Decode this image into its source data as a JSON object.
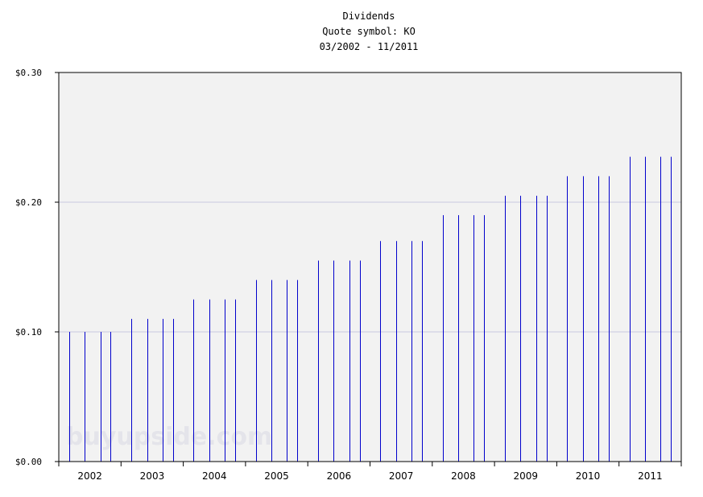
{
  "chart_data": {
    "type": "bar",
    "title_lines": [
      "Dividends",
      "Quote symbol: KO",
      "03/2002 - 11/2011"
    ],
    "watermark": "buyupside.com",
    "ylim": [
      0,
      0.3
    ],
    "y_ticks": [
      {
        "value": 0.0,
        "label": "$0.00"
      },
      {
        "value": 0.1,
        "label": "$0.10"
      },
      {
        "value": 0.2,
        "label": "$0.20"
      },
      {
        "value": 0.3,
        "label": "$0.30"
      }
    ],
    "x_ticks": [
      "2002",
      "2003",
      "2004",
      "2005",
      "2006",
      "2007",
      "2008",
      "2009",
      "2010",
      "2011"
    ],
    "x_range": [
      2002.0,
      2012.0
    ],
    "grid": "horizontal",
    "plot_background": "#f2f2f2",
    "bar_color": "#0000cc",
    "grid_color": "#c8c8e0",
    "series": [
      {
        "points": [
          {
            "date": "2002-03",
            "value": 0.1
          },
          {
            "date": "2002-06",
            "value": 0.1
          },
          {
            "date": "2002-09",
            "value": 0.1
          },
          {
            "date": "2002-11",
            "value": 0.1
          },
          {
            "date": "2003-03",
            "value": 0.11
          },
          {
            "date": "2003-06",
            "value": 0.11
          },
          {
            "date": "2003-09",
            "value": 0.11
          },
          {
            "date": "2003-11",
            "value": 0.11
          },
          {
            "date": "2004-03",
            "value": 0.125
          },
          {
            "date": "2004-06",
            "value": 0.125
          },
          {
            "date": "2004-09",
            "value": 0.125
          },
          {
            "date": "2004-11",
            "value": 0.125
          },
          {
            "date": "2005-03",
            "value": 0.14
          },
          {
            "date": "2005-06",
            "value": 0.14
          },
          {
            "date": "2005-09",
            "value": 0.14
          },
          {
            "date": "2005-11",
            "value": 0.14
          },
          {
            "date": "2006-03",
            "value": 0.155
          },
          {
            "date": "2006-06",
            "value": 0.155
          },
          {
            "date": "2006-09",
            "value": 0.155
          },
          {
            "date": "2006-11",
            "value": 0.155
          },
          {
            "date": "2007-03",
            "value": 0.17
          },
          {
            "date": "2007-06",
            "value": 0.17
          },
          {
            "date": "2007-09",
            "value": 0.17
          },
          {
            "date": "2007-11",
            "value": 0.17
          },
          {
            "date": "2008-03",
            "value": 0.19
          },
          {
            "date": "2008-06",
            "value": 0.19
          },
          {
            "date": "2008-09",
            "value": 0.19
          },
          {
            "date": "2008-11",
            "value": 0.19
          },
          {
            "date": "2009-03",
            "value": 0.205
          },
          {
            "date": "2009-06",
            "value": 0.205
          },
          {
            "date": "2009-09",
            "value": 0.205
          },
          {
            "date": "2009-11",
            "value": 0.205
          },
          {
            "date": "2010-03",
            "value": 0.22
          },
          {
            "date": "2010-06",
            "value": 0.22
          },
          {
            "date": "2010-09",
            "value": 0.22
          },
          {
            "date": "2010-11",
            "value": 0.22
          },
          {
            "date": "2011-03",
            "value": 0.235
          },
          {
            "date": "2011-06",
            "value": 0.235
          },
          {
            "date": "2011-09",
            "value": 0.235
          },
          {
            "date": "2011-11",
            "value": 0.235
          }
        ]
      }
    ]
  }
}
